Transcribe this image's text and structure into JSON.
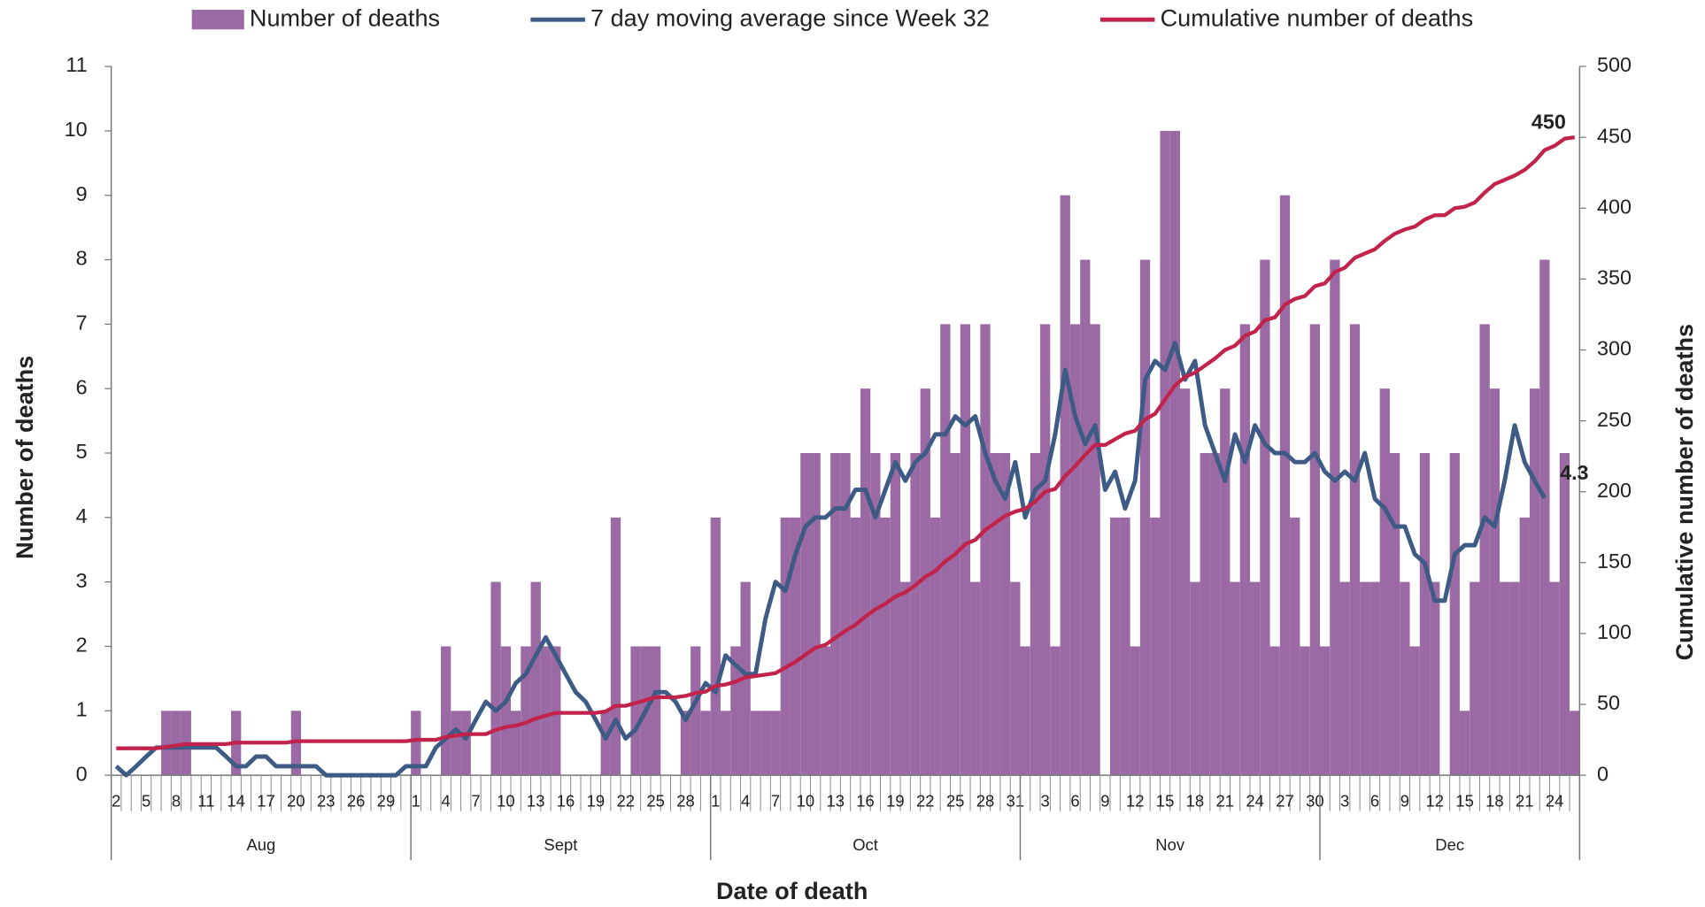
{
  "chart_data": {
    "type": "combo",
    "x_label": "Date of death",
    "y_label": "Number of deaths",
    "y2_label": "Cumulative number of deaths",
    "categories": [
      2,
      null,
      null,
      5,
      null,
      null,
      8,
      null,
      null,
      11,
      null,
      null,
      14,
      null,
      null,
      17,
      null,
      null,
      20,
      null,
      null,
      23,
      null,
      null,
      26,
      null,
      null,
      29,
      null,
      null,
      1,
      null,
      null,
      4,
      null,
      null,
      7,
      null,
      null,
      10,
      null,
      null,
      13,
      null,
      null,
      16,
      null,
      null,
      19,
      null,
      null,
      22,
      null,
      null,
      25,
      null,
      null,
      28,
      null,
      null,
      1,
      null,
      null,
      4,
      null,
      null,
      7,
      null,
      null,
      10,
      null,
      null,
      13,
      null,
      null,
      16,
      null,
      null,
      19,
      null,
      null,
      22,
      null,
      null,
      25,
      null,
      null,
      28,
      null,
      null,
      31,
      null,
      null,
      3,
      null,
      null,
      6,
      null,
      null,
      9,
      null,
      null,
      12,
      null,
      null,
      15,
      null,
      null,
      18,
      null,
      null,
      21,
      null,
      null,
      24,
      null,
      null,
      27,
      null,
      null,
      30,
      null,
      null,
      3,
      null,
      null,
      6,
      null,
      null,
      9,
      null,
      null,
      12,
      null,
      null,
      15,
      null,
      null,
      18,
      null,
      null,
      21,
      null,
      null,
      24,
      null,
      null
    ],
    "months": [
      "Aug",
      "Sept",
      "Oct",
      "Nov",
      "Dec"
    ],
    "ylim": [
      0,
      11
    ],
    "yticks": [
      0,
      1,
      2,
      3,
      4,
      5,
      6,
      7,
      8,
      9,
      10,
      11
    ],
    "y2lim": [
      0,
      500
    ],
    "y2ticks": [
      0,
      50,
      100,
      150,
      200,
      250,
      300,
      350,
      400,
      450,
      500
    ],
    "legend": "top",
    "series": [
      {
        "name": "Number of deaths",
        "type": "bar",
        "color": "#9b69a3",
        "values": [
          0,
          0,
          0,
          0,
          0,
          1,
          1,
          1,
          0,
          0,
          0,
          0,
          1,
          0,
          0,
          0,
          0,
          0,
          1,
          0,
          0,
          0,
          0,
          0,
          0,
          0,
          0,
          0,
          0,
          0,
          1,
          0,
          0,
          2,
          1,
          1,
          0,
          0,
          3,
          2,
          1,
          2,
          3,
          2,
          2,
          0,
          0,
          0,
          0,
          1,
          4,
          0,
          2,
          2,
          2,
          0,
          0,
          1,
          2,
          1,
          4,
          1,
          2,
          3,
          1,
          1,
          1,
          4,
          4,
          5,
          5,
          2,
          5,
          5,
          4,
          6,
          5,
          4,
          5,
          3,
          5,
          6,
          4,
          7,
          5,
          7,
          3,
          7,
          5,
          5,
          3,
          2,
          5,
          7,
          2,
          9,
          7,
          8,
          7,
          0,
          4,
          4,
          2,
          8,
          4,
          10,
          10,
          6,
          3,
          5,
          5,
          6,
          3,
          7,
          3,
          8,
          2,
          9,
          4,
          2,
          7,
          2,
          8,
          3,
          7,
          3,
          3,
          6,
          5,
          3,
          2,
          5,
          3,
          0,
          5,
          1,
          3,
          7,
          6,
          3,
          3,
          4,
          6,
          8,
          3,
          5,
          1
        ]
      },
      {
        "name": "7 day moving average since Week 32",
        "type": "line",
        "color": "#3e5b85",
        "values": [
          0.14,
          0,
          0.14,
          0.29,
          0.43,
          0.43,
          0.43,
          0.43,
          0.43,
          0.43,
          0.43,
          0.29,
          0.14,
          0.14,
          0.29,
          0.29,
          0.14,
          0.14,
          0.14,
          0.14,
          0.14,
          0,
          0,
          0,
          0,
          0,
          0,
          0,
          0,
          0.14,
          0.14,
          0.14,
          0.43,
          0.57,
          0.71,
          0.57,
          0.86,
          1.14,
          1,
          1.14,
          1.43,
          1.57,
          1.86,
          2.14,
          1.86,
          1.57,
          1.29,
          1.14,
          0.86,
          0.57,
          0.86,
          0.57,
          0.71,
          1,
          1.29,
          1.29,
          1.14,
          0.86,
          1.14,
          1.43,
          1.29,
          1.86,
          1.71,
          1.57,
          1.57,
          2.43,
          3,
          2.86,
          3.43,
          3.86,
          4,
          4,
          4.14,
          4.14,
          4.43,
          4.43,
          4,
          4.43,
          4.86,
          4.57,
          4.86,
          5,
          5.29,
          5.29,
          5.57,
          5.43,
          5.57,
          5,
          4.57,
          4.29,
          4.86,
          4,
          4.43,
          4.57,
          5.29,
          6.29,
          5.57,
          5.14,
          5.43,
          4.43,
          4.71,
          4.14,
          4.57,
          6.14,
          6.43,
          6.29,
          6.71,
          6.14,
          6.43,
          5.43,
          5,
          4.57,
          5.29,
          4.86,
          5.43,
          5.14,
          5,
          5,
          4.86,
          4.86,
          5,
          4.71,
          4.57,
          4.71,
          4.57,
          5,
          4.29,
          4.14,
          3.86,
          3.86,
          3.43,
          3.29,
          2.71,
          2.71,
          3.43,
          3.57,
          3.57,
          4,
          3.86,
          4.57,
          5.43,
          4.86,
          4.57,
          4.3,
          null,
          null,
          null
        ],
        "value_labels": [
          null,
          null,
          null,
          null,
          null,
          null,
          null,
          null,
          null,
          null,
          null,
          null,
          null,
          null,
          null,
          null,
          null,
          null,
          null,
          null,
          null,
          null,
          null,
          null,
          null,
          null,
          null,
          null,
          null,
          null,
          null,
          null,
          null,
          null,
          null,
          null,
          null,
          null,
          null,
          null,
          null,
          null,
          null,
          null,
          null,
          null,
          null,
          null,
          null,
          null,
          null,
          null,
          null,
          null,
          null,
          null,
          null,
          null,
          null,
          null,
          null,
          null,
          null,
          null,
          null,
          null,
          null,
          null,
          null,
          null,
          null,
          null,
          null,
          null,
          null,
          null,
          null,
          null,
          null,
          null,
          null,
          null,
          null,
          null,
          null,
          null,
          null,
          null,
          null,
          null,
          null,
          null,
          null,
          null,
          null,
          null,
          null,
          null,
          null,
          null,
          null,
          null,
          null,
          null,
          null,
          null,
          null,
          null,
          null,
          null,
          null,
          null,
          null,
          null,
          null,
          null,
          null,
          null,
          null,
          null,
          null,
          null,
          null,
          null,
          null,
          null,
          null,
          null,
          null,
          null,
          null,
          null,
          null,
          null,
          null,
          null,
          null,
          null,
          null,
          null,
          null,
          null,
          null,
          "4.3",
          null,
          null,
          null
        ]
      },
      {
        "name": "Cumulative number of deaths",
        "type": "line",
        "color": "#c1234b",
        "axis": "y2",
        "values": [
          19,
          19,
          19,
          19,
          19,
          20,
          21,
          22,
          22,
          22,
          22,
          22,
          23,
          23,
          23,
          23,
          23,
          23,
          24,
          24,
          24,
          24,
          24,
          24,
          24,
          24,
          24,
          24,
          24,
          24,
          25,
          25,
          25,
          27,
          28,
          29,
          29,
          29,
          32,
          34,
          35,
          37,
          40,
          42,
          44,
          44,
          44,
          44,
          44,
          45,
          49,
          49,
          51,
          53,
          55,
          55,
          55,
          56,
          58,
          59,
          63,
          64,
          66,
          69,
          70,
          71,
          72,
          76,
          80,
          85,
          90,
          92,
          97,
          102,
          106,
          112,
          117,
          121,
          126,
          129,
          134,
          140,
          144,
          151,
          156,
          163,
          166,
          173,
          178,
          183,
          186,
          188,
          193,
          200,
          202,
          211,
          218,
          226,
          233,
          233,
          237,
          241,
          243,
          251,
          255,
          265,
          275,
          281,
          284,
          289,
          294,
          300,
          303,
          310,
          313,
          321,
          323,
          332,
          336,
          338,
          345,
          347,
          355,
          358,
          365,
          368,
          371,
          377,
          382,
          385,
          387,
          392,
          395,
          395,
          400,
          401,
          404,
          411,
          417,
          420,
          423,
          427,
          433,
          441,
          444,
          449,
          450
        ],
        "value_labels": [
          null,
          null,
          null,
          null,
          null,
          null,
          null,
          null,
          null,
          null,
          null,
          null,
          null,
          null,
          null,
          null,
          null,
          null,
          null,
          null,
          null,
          null,
          null,
          null,
          null,
          null,
          null,
          null,
          null,
          null,
          null,
          null,
          null,
          null,
          null,
          null,
          null,
          null,
          null,
          null,
          null,
          null,
          null,
          null,
          null,
          null,
          null,
          null,
          null,
          null,
          null,
          null,
          null,
          null,
          null,
          null,
          null,
          null,
          null,
          null,
          null,
          null,
          null,
          null,
          null,
          null,
          null,
          null,
          null,
          null,
          null,
          null,
          null,
          null,
          null,
          null,
          null,
          null,
          null,
          null,
          null,
          null,
          null,
          null,
          null,
          null,
          null,
          null,
          null,
          null,
          null,
          null,
          null,
          null,
          null,
          null,
          null,
          null,
          null,
          null,
          null,
          null,
          null,
          null,
          null,
          null,
          null,
          null,
          null,
          null,
          null,
          null,
          null,
          null,
          null,
          null,
          null,
          null,
          null,
          null,
          null,
          null,
          null,
          null,
          null,
          null,
          null,
          null,
          null,
          null,
          null,
          null,
          null,
          null,
          null,
          null,
          null,
          null,
          null,
          null,
          null,
          null,
          null,
          null,
          null,
          null,
          "450"
        ]
      }
    ]
  }
}
